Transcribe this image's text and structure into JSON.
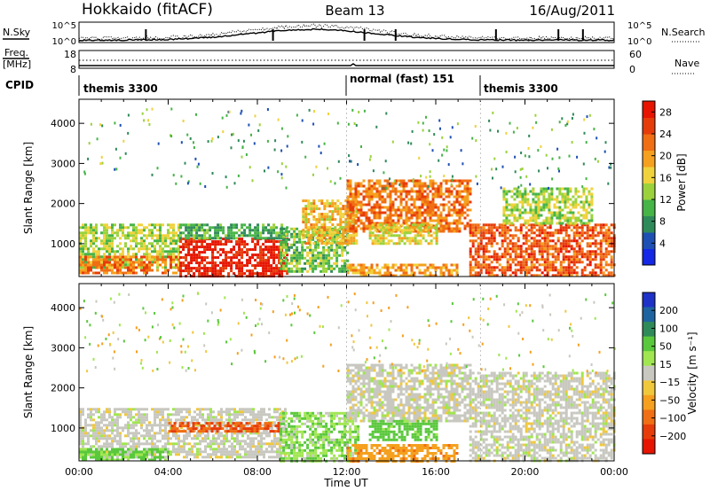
{
  "header": {
    "station": "Hokkaido (fitACF)",
    "beam": "Beam 13",
    "date": "16/Aug/2011"
  },
  "strip_labels": {
    "nsky": "N.Sky",
    "nsearch": "N.Search",
    "freq_line1": "Freq.",
    "freq_line2": "[MHz]",
    "nave": "Nave",
    "cpid": "CPID"
  },
  "strip_ticks": {
    "nsky_top": "10^5",
    "nsky_bottom": "10^0",
    "nsearch_top": "10^5",
    "nsearch_bottom": "10^0",
    "freq_top": "18",
    "freq_bottom": "8",
    "nave_top": "60",
    "nave_bottom": "0"
  },
  "cpid_segments": [
    {
      "label": "themis 3300",
      "start_hour": 0
    },
    {
      "label": "normal (fast) 151",
      "start_hour": 12
    },
    {
      "label": "themis 3300",
      "start_hour": 18
    }
  ],
  "x_axis": {
    "label": "Time UT",
    "ticks": [
      "00:00",
      "04:00",
      "08:00",
      "12:00",
      "16:00",
      "20:00",
      "00:00"
    ],
    "range_hours": [
      0,
      24
    ]
  },
  "y_axis": {
    "label": "Slant Range [km]",
    "ticks": [
      "1000",
      "2000",
      "3000",
      "4000"
    ],
    "range_km": [
      180,
      4600
    ]
  },
  "colorbars": {
    "power": {
      "label": "Power [dB]",
      "ticks": [
        "4",
        "8",
        "12",
        "16",
        "20",
        "24",
        "28"
      ],
      "colors": [
        "#1428e6",
        "#1e50b4",
        "#2f8a5a",
        "#46b447",
        "#9bd23c",
        "#f0d23c",
        "#f5a01e",
        "#f06e14",
        "#e63c0a",
        "#e61400"
      ]
    },
    "velocity": {
      "label": "Velocity [m s⁻¹]",
      "ticks": [
        "200",
        "100",
        "50",
        "15",
        "−15",
        "−50",
        "−100",
        "−200"
      ],
      "colors": [
        "#1e32c8",
        "#1e64a0",
        "#2f8a5a",
        "#5ac83c",
        "#a0e650",
        "#c8c8c0",
        "#f0c83c",
        "#f5a01e",
        "#f06e14",
        "#e63c0a",
        "#e61400"
      ]
    }
  },
  "chart_data": [
    {
      "type": "heatmap",
      "title": "Power [dB]",
      "xlabel": "Time UT",
      "ylabel": "Slant Range [km]",
      "xlim": [
        0,
        24
      ],
      "ylim": [
        180,
        4600
      ],
      "zlim": [
        0,
        30
      ],
      "regions": [
        {
          "t": [
            0,
            4.5
          ],
          "r": [
            400,
            1500
          ],
          "db": 14
        },
        {
          "t": [
            0,
            4.5
          ],
          "r": [
            300,
            700
          ],
          "db": 22
        },
        {
          "t": [
            4.5,
            9.3
          ],
          "r": [
            200,
            1150
          ],
          "db": 28
        },
        {
          "t": [
            4.5,
            9.3
          ],
          "r": [
            1150,
            1500
          ],
          "db": 10
        },
        {
          "t": [
            9,
            12
          ],
          "r": [
            300,
            1400
          ],
          "db": 12
        },
        {
          "t": [
            10,
            12.5
          ],
          "r": [
            1000,
            2100
          ],
          "db": 18
        },
        {
          "t": [
            12,
            17.5
          ],
          "r": [
            1300,
            2600
          ],
          "db": 22
        },
        {
          "t": [
            13,
            16
          ],
          "r": [
            1000,
            1500
          ],
          "db": 16
        },
        {
          "t": [
            17.5,
            24
          ],
          "r": [
            200,
            1500
          ],
          "db": 24
        },
        {
          "t": [
            19,
            23
          ],
          "r": [
            1500,
            2400
          ],
          "db": 14
        },
        {
          "t": [
            12,
            17
          ],
          "r": [
            200,
            500
          ],
          "db": 20
        }
      ]
    },
    {
      "type": "heatmap",
      "title": "Velocity [m s⁻¹]",
      "xlabel": "Time UT",
      "ylabel": "Slant Range [km]",
      "xlim": [
        0,
        24
      ],
      "ylim": [
        180,
        4600
      ],
      "zlim": [
        -200,
        200
      ],
      "regions": [
        {
          "t": [
            0,
            9.3
          ],
          "r": [
            300,
            1500
          ],
          "v": 0
        },
        {
          "t": [
            0,
            4
          ],
          "r": [
            200,
            500
          ],
          "v": 40
        },
        {
          "t": [
            4,
            9
          ],
          "r": [
            900,
            1150
          ],
          "v": -150
        },
        {
          "t": [
            9,
            12.5
          ],
          "r": [
            200,
            1400
          ],
          "v": 30
        },
        {
          "t": [
            12,
            17.5
          ],
          "r": [
            1200,
            2600
          ],
          "v": 0
        },
        {
          "t": [
            13,
            16
          ],
          "r": [
            700,
            1200
          ],
          "v": 50
        },
        {
          "t": [
            12,
            17
          ],
          "r": [
            200,
            600
          ],
          "v": -60
        },
        {
          "t": [
            17.5,
            24
          ],
          "r": [
            200,
            2400
          ],
          "v": 0
        }
      ]
    }
  ]
}
